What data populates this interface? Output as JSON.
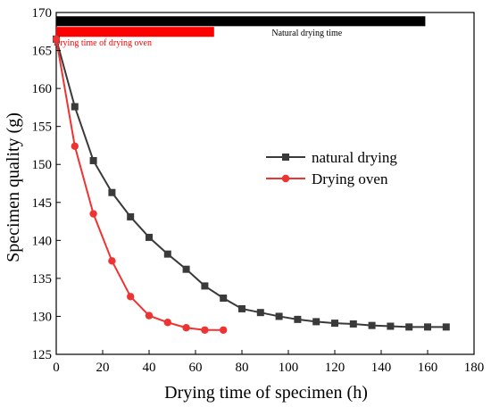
{
  "chart_data": {
    "type": "line",
    "xlabel": "Drying time of specimen (h)",
    "ylabel": "Specimen quality (g)",
    "xlim": [
      0,
      180
    ],
    "ylim": [
      125,
      170
    ],
    "x_ticks": [
      0,
      20,
      40,
      60,
      80,
      100,
      120,
      140,
      160,
      180
    ],
    "y_ticks": [
      125,
      130,
      135,
      140,
      145,
      150,
      155,
      160,
      165,
      170
    ],
    "grid": false,
    "legend_position": "center-right",
    "series": [
      {
        "name": "natural drying",
        "color": "#3a3a3a",
        "marker": "square",
        "x": [
          0,
          8,
          16,
          24,
          32,
          40,
          48,
          56,
          64,
          72,
          80,
          88,
          96,
          104,
          112,
          120,
          128,
          136,
          144,
          152,
          160,
          168
        ],
        "y": [
          166.5,
          157.6,
          150.5,
          146.3,
          143.1,
          140.4,
          138.2,
          136.2,
          134.0,
          132.4,
          131.0,
          130.5,
          130.0,
          129.6,
          129.3,
          129.1,
          129.0,
          128.8,
          128.7,
          128.6,
          128.6,
          128.6
        ]
      },
      {
        "name": "Drying oven",
        "color": "#ee3333",
        "marker": "circle",
        "x": [
          0,
          8,
          16,
          24,
          32,
          40,
          48,
          56,
          64,
          72
        ],
        "y": [
          166.5,
          152.4,
          143.5,
          137.3,
          132.6,
          130.1,
          129.2,
          128.5,
          128.2,
          128.2
        ]
      }
    ],
    "annotations": [
      {
        "label": "Natural drying time",
        "bar_color": "#000000",
        "text_color": "#000000",
        "x_range": [
          0,
          159
        ],
        "y_range": [
          168.2,
          169.5
        ]
      },
      {
        "label": "Drying time of drying oven",
        "bar_color": "#ff0000",
        "text_color": "#ff0000",
        "x_range": [
          0,
          68
        ],
        "y_range": [
          166.8,
          168.1
        ]
      }
    ]
  }
}
